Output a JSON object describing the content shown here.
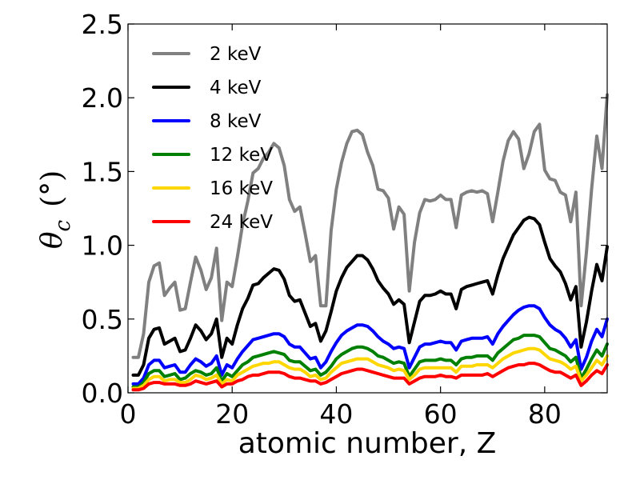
{
  "chart_data": {
    "type": "line",
    "xlabel": "atomic number, Z",
    "ylabel_symbol": "θ",
    "ylabel_subscript": "c",
    "ylabel_unit": "(°)",
    "xlim": [
      0,
      92
    ],
    "ylim": [
      0.0,
      2.5
    ],
    "xticks": [
      0,
      20,
      40,
      60,
      80
    ],
    "xtick_labels": [
      "0",
      "20",
      "40",
      "60",
      "80"
    ],
    "yticks": [
      0.0,
      0.5,
      1.0,
      1.5,
      2.0,
      2.5
    ],
    "ytick_labels": [
      "0.0",
      "0.5",
      "1.0",
      "1.5",
      "2.0",
      "2.5"
    ],
    "grid": false,
    "legend_position": "top-left",
    "x": [
      1,
      2,
      3,
      4,
      5,
      6,
      7,
      8,
      9,
      10,
      11,
      12,
      13,
      14,
      15,
      16,
      17,
      18,
      19,
      20,
      21,
      22,
      23,
      24,
      25,
      26,
      27,
      28,
      29,
      30,
      31,
      32,
      33,
      34,
      35,
      36,
      37,
      38,
      39,
      40,
      41,
      42,
      43,
      44,
      45,
      46,
      47,
      48,
      49,
      50,
      51,
      52,
      53,
      54,
      55,
      56,
      57,
      58,
      59,
      60,
      61,
      62,
      63,
      64,
      65,
      66,
      67,
      68,
      69,
      70,
      71,
      72,
      73,
      74,
      75,
      76,
      77,
      78,
      79,
      80,
      81,
      82,
      83,
      84,
      85,
      86,
      87,
      88,
      89,
      90,
      91,
      92
    ],
    "series": [
      {
        "name": "2 keV",
        "color": "#808080",
        "values": [
          0.24,
          0.24,
          0.4,
          0.75,
          0.86,
          0.88,
          0.66,
          0.71,
          0.75,
          0.56,
          0.57,
          0.75,
          0.92,
          0.83,
          0.7,
          0.78,
          0.98,
          0.49,
          0.75,
          0.72,
          0.92,
          1.14,
          1.3,
          1.49,
          1.52,
          1.59,
          1.63,
          1.69,
          1.66,
          1.54,
          1.31,
          1.23,
          1.26,
          1.08,
          0.89,
          0.93,
          0.59,
          0.59,
          1.1,
          1.38,
          1.56,
          1.69,
          1.77,
          1.78,
          1.75,
          1.63,
          1.54,
          1.38,
          1.37,
          1.32,
          1.11,
          1.26,
          1.21,
          0.69,
          1.02,
          1.22,
          1.31,
          1.3,
          1.31,
          1.34,
          1.31,
          1.31,
          1.12,
          1.34,
          1.36,
          1.37,
          1.36,
          1.37,
          1.35,
          1.16,
          1.36,
          1.57,
          1.71,
          1.77,
          1.72,
          1.52,
          1.62,
          1.77,
          1.82,
          1.51,
          1.45,
          1.44,
          1.36,
          1.34,
          1.16,
          1.36,
          0.59,
          0.95,
          1.38,
          1.74,
          1.52,
          2.02
        ]
      },
      {
        "name": "4 keV",
        "color": "#000000",
        "values": [
          0.12,
          0.12,
          0.19,
          0.37,
          0.43,
          0.44,
          0.33,
          0.35,
          0.37,
          0.28,
          0.29,
          0.37,
          0.46,
          0.42,
          0.36,
          0.4,
          0.5,
          0.24,
          0.37,
          0.33,
          0.46,
          0.57,
          0.64,
          0.73,
          0.74,
          0.78,
          0.81,
          0.84,
          0.83,
          0.77,
          0.66,
          0.62,
          0.63,
          0.54,
          0.45,
          0.47,
          0.35,
          0.42,
          0.55,
          0.69,
          0.78,
          0.85,
          0.89,
          0.93,
          0.93,
          0.9,
          0.84,
          0.76,
          0.71,
          0.67,
          0.6,
          0.63,
          0.6,
          0.34,
          0.48,
          0.62,
          0.66,
          0.66,
          0.67,
          0.69,
          0.67,
          0.67,
          0.57,
          0.7,
          0.72,
          0.73,
          0.74,
          0.75,
          0.76,
          0.67,
          0.8,
          0.91,
          0.99,
          1.07,
          1.12,
          1.17,
          1.19,
          1.18,
          1.14,
          1.02,
          0.91,
          0.86,
          0.82,
          0.74,
          0.63,
          0.72,
          0.31,
          0.48,
          0.69,
          0.87,
          0.76,
          0.99
        ]
      },
      {
        "name": "8 keV",
        "color": "#0000ff",
        "values": [
          0.06,
          0.06,
          0.1,
          0.19,
          0.22,
          0.22,
          0.17,
          0.18,
          0.19,
          0.14,
          0.14,
          0.19,
          0.23,
          0.21,
          0.18,
          0.2,
          0.25,
          0.12,
          0.19,
          0.17,
          0.23,
          0.28,
          0.32,
          0.36,
          0.37,
          0.38,
          0.39,
          0.4,
          0.4,
          0.38,
          0.33,
          0.31,
          0.31,
          0.27,
          0.23,
          0.24,
          0.17,
          0.21,
          0.28,
          0.34,
          0.39,
          0.42,
          0.44,
          0.46,
          0.46,
          0.45,
          0.42,
          0.38,
          0.35,
          0.33,
          0.3,
          0.31,
          0.3,
          0.17,
          0.24,
          0.31,
          0.33,
          0.33,
          0.34,
          0.35,
          0.34,
          0.34,
          0.29,
          0.35,
          0.36,
          0.37,
          0.37,
          0.37,
          0.38,
          0.33,
          0.4,
          0.45,
          0.49,
          0.53,
          0.56,
          0.58,
          0.59,
          0.59,
          0.57,
          0.51,
          0.46,
          0.43,
          0.41,
          0.37,
          0.31,
          0.36,
          0.16,
          0.24,
          0.35,
          0.43,
          0.38,
          0.5
        ]
      },
      {
        "name": "12 keV",
        "color": "#008000",
        "values": [
          0.04,
          0.04,
          0.07,
          0.13,
          0.15,
          0.15,
          0.11,
          0.12,
          0.13,
          0.09,
          0.1,
          0.13,
          0.15,
          0.14,
          0.12,
          0.13,
          0.17,
          0.08,
          0.13,
          0.11,
          0.15,
          0.19,
          0.21,
          0.24,
          0.25,
          0.26,
          0.27,
          0.28,
          0.27,
          0.26,
          0.22,
          0.21,
          0.21,
          0.18,
          0.15,
          0.16,
          0.12,
          0.14,
          0.18,
          0.23,
          0.26,
          0.28,
          0.3,
          0.31,
          0.31,
          0.3,
          0.28,
          0.25,
          0.24,
          0.22,
          0.2,
          0.21,
          0.2,
          0.11,
          0.16,
          0.21,
          0.22,
          0.22,
          0.22,
          0.23,
          0.22,
          0.22,
          0.19,
          0.23,
          0.24,
          0.24,
          0.25,
          0.25,
          0.25,
          0.22,
          0.27,
          0.3,
          0.33,
          0.36,
          0.37,
          0.39,
          0.39,
          0.39,
          0.38,
          0.34,
          0.3,
          0.29,
          0.27,
          0.25,
          0.21,
          0.24,
          0.1,
          0.16,
          0.23,
          0.29,
          0.25,
          0.33
        ]
      },
      {
        "name": "16 keV",
        "color": "#ffd700",
        "values": [
          0.03,
          0.03,
          0.05,
          0.09,
          0.11,
          0.11,
          0.08,
          0.09,
          0.09,
          0.07,
          0.07,
          0.09,
          0.12,
          0.11,
          0.09,
          0.1,
          0.12,
          0.06,
          0.09,
          0.08,
          0.12,
          0.14,
          0.16,
          0.18,
          0.19,
          0.2,
          0.2,
          0.21,
          0.21,
          0.19,
          0.17,
          0.16,
          0.16,
          0.14,
          0.11,
          0.12,
          0.09,
          0.1,
          0.14,
          0.17,
          0.2,
          0.21,
          0.22,
          0.23,
          0.23,
          0.23,
          0.21,
          0.19,
          0.18,
          0.17,
          0.15,
          0.16,
          0.15,
          0.09,
          0.12,
          0.16,
          0.17,
          0.17,
          0.17,
          0.17,
          0.17,
          0.17,
          0.14,
          0.18,
          0.18,
          0.18,
          0.19,
          0.19,
          0.19,
          0.17,
          0.2,
          0.23,
          0.25,
          0.27,
          0.28,
          0.29,
          0.3,
          0.3,
          0.29,
          0.26,
          0.23,
          0.22,
          0.21,
          0.19,
          0.16,
          0.18,
          0.08,
          0.12,
          0.17,
          0.22,
          0.19,
          0.25
        ]
      },
      {
        "name": "24 keV",
        "color": "#ff0000",
        "values": [
          0.02,
          0.02,
          0.03,
          0.06,
          0.07,
          0.07,
          0.06,
          0.06,
          0.06,
          0.05,
          0.05,
          0.06,
          0.08,
          0.07,
          0.06,
          0.07,
          0.08,
          0.04,
          0.06,
          0.06,
          0.08,
          0.09,
          0.11,
          0.12,
          0.12,
          0.13,
          0.14,
          0.14,
          0.14,
          0.13,
          0.11,
          0.1,
          0.1,
          0.09,
          0.08,
          0.08,
          0.06,
          0.07,
          0.09,
          0.11,
          0.13,
          0.14,
          0.15,
          0.16,
          0.16,
          0.15,
          0.14,
          0.13,
          0.12,
          0.11,
          0.1,
          0.1,
          0.1,
          0.06,
          0.08,
          0.1,
          0.11,
          0.11,
          0.11,
          0.12,
          0.11,
          0.11,
          0.1,
          0.12,
          0.12,
          0.12,
          0.12,
          0.12,
          0.13,
          0.11,
          0.13,
          0.15,
          0.17,
          0.18,
          0.19,
          0.19,
          0.2,
          0.2,
          0.19,
          0.17,
          0.15,
          0.14,
          0.14,
          0.12,
          0.1,
          0.12,
          0.05,
          0.08,
          0.12,
          0.15,
          0.13,
          0.19
        ]
      }
    ]
  }
}
